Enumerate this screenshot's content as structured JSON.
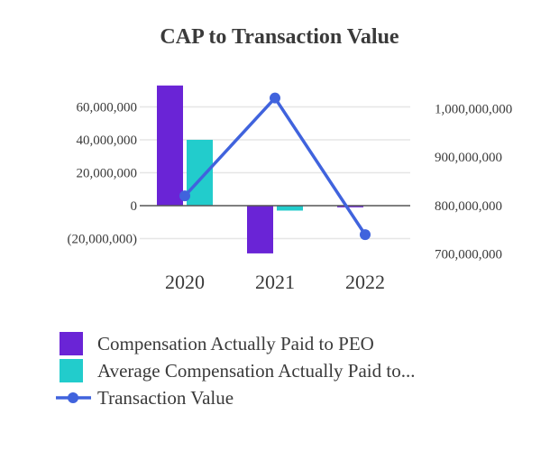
{
  "chart_data": {
    "type": "bar",
    "title": "CAP to Transaction Value",
    "categories": [
      "2020",
      "2021",
      "2022"
    ],
    "left_axis": {
      "ylim": [
        -20000000,
        70000000
      ],
      "ticks": [
        60000000,
        40000000,
        20000000,
        0,
        -20000000
      ],
      "tick_labels": [
        "60,000,000",
        "40,000,000",
        "20,000,000",
        "0",
        "(20,000,000)"
      ]
    },
    "right_axis": {
      "ylim": [
        690000000,
        1030000000
      ],
      "ticks": [
        1000000000,
        900000000,
        800000000,
        700000000
      ],
      "tick_labels": [
        "1,000,000,000",
        "900,000,000",
        "800,000,000",
        "700,000,000"
      ]
    },
    "series": [
      {
        "name": "Compensation Actually Paid to PEO",
        "type": "bar",
        "axis": "left",
        "color": "#6a24d6",
        "values": [
          73000000,
          -29000000,
          -1000000
        ]
      },
      {
        "name": "Average Compensation Actually Paid to...",
        "type": "bar",
        "axis": "left",
        "color": "#22cccc",
        "values": [
          40000000,
          -3000000,
          0
        ]
      },
      {
        "name": "Transaction Value",
        "type": "line",
        "axis": "right",
        "color": "#4063dd",
        "values": [
          820000000,
          1022000000,
          740000000
        ]
      }
    ],
    "grid": true,
    "legend_position": "bottom"
  }
}
